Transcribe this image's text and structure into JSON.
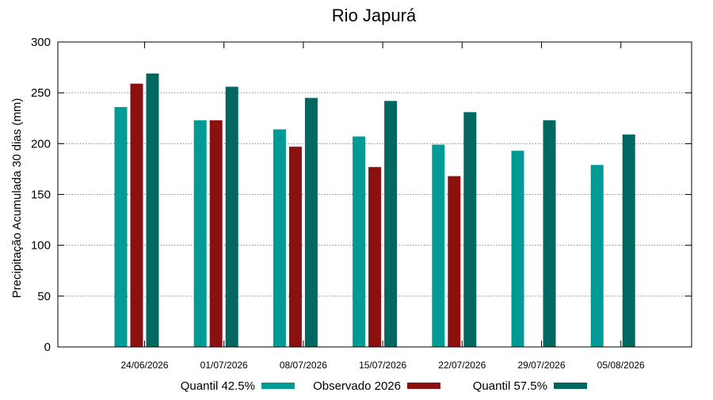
{
  "chart_data": {
    "type": "bar",
    "title": "Rio Japurá",
    "ylabel": "Precipitação Acumulada 30 dias (mm)",
    "xlabel": "",
    "ylim": [
      0,
      300
    ],
    "yticks": [
      "0",
      "50",
      "100",
      "150",
      "200",
      "250",
      "300"
    ],
    "categories": [
      "24/06/2026",
      "01/07/2026",
      "08/07/2026",
      "15/07/2026",
      "22/07/2026",
      "29/07/2026",
      "05/08/2026"
    ],
    "grid": true,
    "legend_position": "bottom",
    "series": [
      {
        "name": "Quantil 42.5%",
        "color": "#009b95",
        "values": [
          236,
          223,
          214,
          207,
          199,
          193,
          179
        ]
      },
      {
        "name": "Observado 2026",
        "color": "#8b1010",
        "values": [
          259,
          223,
          197,
          177,
          168,
          null,
          null
        ]
      },
      {
        "name": "Quantil 57.5%",
        "color": "#006761",
        "values": [
          269,
          256,
          245,
          242,
          231,
          223,
          209
        ]
      }
    ]
  }
}
